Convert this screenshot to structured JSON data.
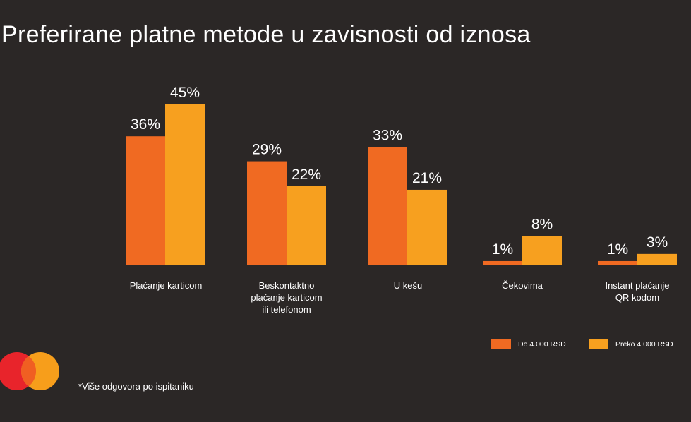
{
  "title": "Preferirane platne metode u zavisnosti od iznosa",
  "footnote": "*Više odgovora po ispitaniku",
  "colors": {
    "background": "#2b2726",
    "series_1": "#f06a22",
    "series_2": "#f7a01f",
    "axis": "#8a8582",
    "logo_red": "#e8242b",
    "logo_orange": "#f79e1b",
    "logo_overlap": "#f05f22"
  },
  "logo": {
    "icon": "mastercard-logo-icon"
  },
  "chart_data": {
    "type": "bar",
    "title": "Preferirane platne metode u zavisnosti od iznosa",
    "xlabel": "",
    "ylabel": "",
    "ylim": [
      0,
      45
    ],
    "grid": false,
    "legend_position": "bottom-right",
    "categories": [
      [
        "Plaćanje karticom"
      ],
      [
        "Beskontaktno",
        "plaćanje karticom",
        "ili telefonom"
      ],
      [
        "U kešu"
      ],
      [
        "Čekovima"
      ],
      [
        "Instant plaćanje",
        "QR kodom"
      ]
    ],
    "series": [
      {
        "name": "Do 4.000 RSD",
        "color": "#f06a22",
        "values": [
          36,
          29,
          33,
          1,
          1
        ]
      },
      {
        "name": "Preko 4.000 RSD",
        "color": "#f7a01f",
        "values": [
          45,
          22,
          21,
          8,
          3
        ]
      }
    ],
    "value_suffix": "%"
  }
}
